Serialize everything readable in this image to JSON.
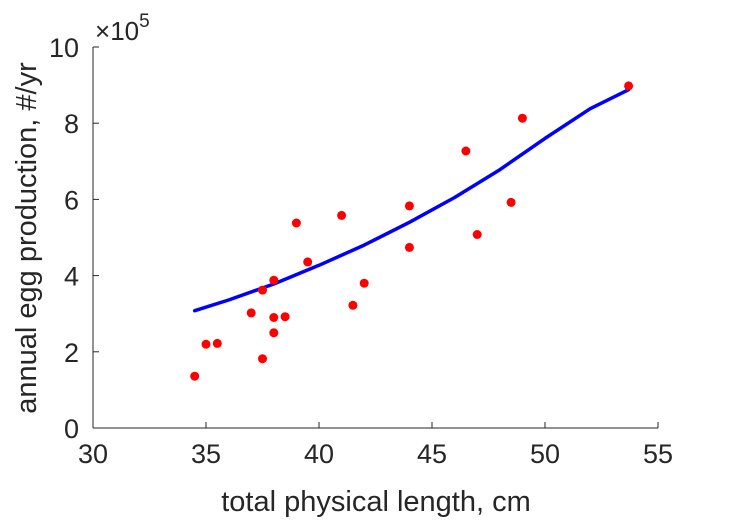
{
  "chart_data": {
    "type": "scatter",
    "title": "",
    "xlabel": "total physical length, cm",
    "ylabel": "annual egg production, #/yr",
    "xlim": [
      30,
      55
    ],
    "ylim": [
      0,
      1000000
    ],
    "xticks": [
      30,
      35,
      40,
      45,
      50,
      55
    ],
    "xtick_labels": [
      "30",
      "35",
      "40",
      "45",
      "50",
      "55"
    ],
    "yticks": [
      0,
      200000,
      400000,
      600000,
      800000,
      1000000
    ],
    "ytick_labels": [
      "0",
      "2",
      "4",
      "6",
      "8",
      "10"
    ],
    "y_exponent": {
      "times": "×",
      "base": "10",
      "power": "5"
    },
    "grid": false,
    "legend": "none",
    "series": [
      {
        "type": "scatter",
        "color": "#ff0000",
        "points": [
          [
            34.5,
            136000
          ],
          [
            35.0,
            220000
          ],
          [
            35.5,
            222000
          ],
          [
            37.0,
            302000
          ],
          [
            37.5,
            182000
          ],
          [
            37.5,
            362000
          ],
          [
            38.0,
            290000
          ],
          [
            38.0,
            250000
          ],
          [
            38.0,
            388000
          ],
          [
            38.5,
            292000
          ],
          [
            39.0,
            538000
          ],
          [
            39.5,
            436000
          ],
          [
            41.0,
            558000
          ],
          [
            41.5,
            322000
          ],
          [
            42.0,
            380000
          ],
          [
            44.0,
            583000
          ],
          [
            44.0,
            474000
          ],
          [
            46.5,
            727000
          ],
          [
            47.0,
            508000
          ],
          [
            48.5,
            592000
          ],
          [
            49.0,
            813000
          ],
          [
            53.7,
            898000
          ]
        ]
      },
      {
        "type": "line",
        "color": "#0000ff",
        "points": [
          [
            34.5,
            308000
          ],
          [
            36.0,
            336000
          ],
          [
            38.0,
            378000
          ],
          [
            40.0,
            427000
          ],
          [
            42.0,
            480000
          ],
          [
            44.0,
            540000
          ],
          [
            46.0,
            605000
          ],
          [
            48.0,
            678000
          ],
          [
            50.0,
            760000
          ],
          [
            52.0,
            838000
          ],
          [
            53.7,
            888000
          ]
        ]
      }
    ]
  }
}
